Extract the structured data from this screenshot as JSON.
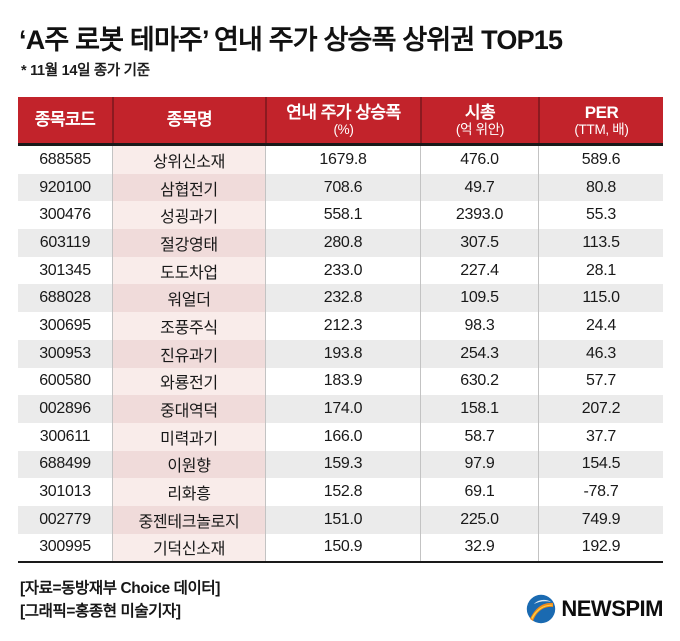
{
  "header": {
    "title": "‘A주 로봇 테마주’ 연내 주가 상승폭 상위권 TOP15",
    "note": "* 11월 14일 종가 기준"
  },
  "table": {
    "columns": [
      {
        "label": "종목코드",
        "sub": ""
      },
      {
        "label": "종목명",
        "sub": ""
      },
      {
        "label": "연내 주가 상승폭",
        "sub": "(%)"
      },
      {
        "label": "시총",
        "sub": "(억 위안)"
      },
      {
        "label": "PER",
        "sub": "(TTM, 배)"
      }
    ],
    "rows": [
      [
        "688585",
        "상위신소재",
        "1679.8",
        "476.0",
        "589.6"
      ],
      [
        "920100",
        "삼협전기",
        "708.6",
        "49.7",
        "80.8"
      ],
      [
        "300476",
        "성굉과기",
        "558.1",
        "2393.0",
        "55.3"
      ],
      [
        "603119",
        "절강영태",
        "280.8",
        "307.5",
        "113.5"
      ],
      [
        "301345",
        "도도차업",
        "233.0",
        "227.4",
        "28.1"
      ],
      [
        "688028",
        "워얼더",
        "232.8",
        "109.5",
        "115.0"
      ],
      [
        "300695",
        "조풍주식",
        "212.3",
        "98.3",
        "24.4"
      ],
      [
        "300953",
        "진유과기",
        "193.8",
        "254.3",
        "46.3"
      ],
      [
        "600580",
        "와룡전기",
        "183.9",
        "630.2",
        "57.7"
      ],
      [
        "002896",
        "중대역덕",
        "174.0",
        "158.1",
        "207.2"
      ],
      [
        "300611",
        "미력과기",
        "166.0",
        "58.7",
        "37.7"
      ],
      [
        "688499",
        "이원향",
        "159.3",
        "97.9",
        "154.5"
      ],
      [
        "301013",
        "리화흥",
        "152.8",
        "69.1",
        "-78.7"
      ],
      [
        "002779",
        "중젠테크놀로지",
        "151.0",
        "225.0",
        "749.9"
      ],
      [
        "300995",
        "기덕신소재",
        "150.9",
        "32.9",
        "192.9"
      ]
    ]
  },
  "footer": {
    "source": "[자료=동방재부 Choice 데이터]",
    "credit": "[그래픽=홍종현 미술기자]",
    "logo_text": "NEWSPIM"
  },
  "colors": {
    "header_bg": "#c2232b",
    "header_text": "#ffffff",
    "header_divider": "#8c1a20",
    "table_border": "#1a1a1a",
    "row_alt_bg": "#ebebeb",
    "name_cell_bg": "#f9ecea",
    "name_cell_alt_bg": "#f0dbda",
    "body_divider": "#c3c3c3",
    "body_text": "#191919",
    "logo_blue": "#1a6ab1",
    "logo_orange": "#f08a1d",
    "logo_yellow": "#ffd23f"
  }
}
